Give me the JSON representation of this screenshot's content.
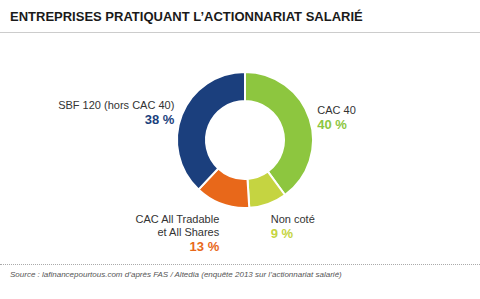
{
  "chart_data": {
    "type": "pie",
    "title": "ENTREPRISES PRATIQUANT L’ACTIONNARIAT SALARIÉ",
    "categories": [
      "CAC 40",
      "Non coté",
      "CAC All Tradable\net All Shares",
      "SBF 120 (hors CAC 40)"
    ],
    "values": [
      40,
      9,
      13,
      38
    ],
    "colors": [
      "#8dc63f",
      "#c5d441",
      "#e8681a",
      "#1b3f7d"
    ],
    "value_labels": [
      "40 %",
      "9 %",
      "13 %",
      "38 %"
    ],
    "data_labels": true,
    "annotations": [
      "Source : lafinancepourtous.com d’après FAS / Altedia (enquête 2013 sur l’actionnariat salarié)"
    ]
  }
}
